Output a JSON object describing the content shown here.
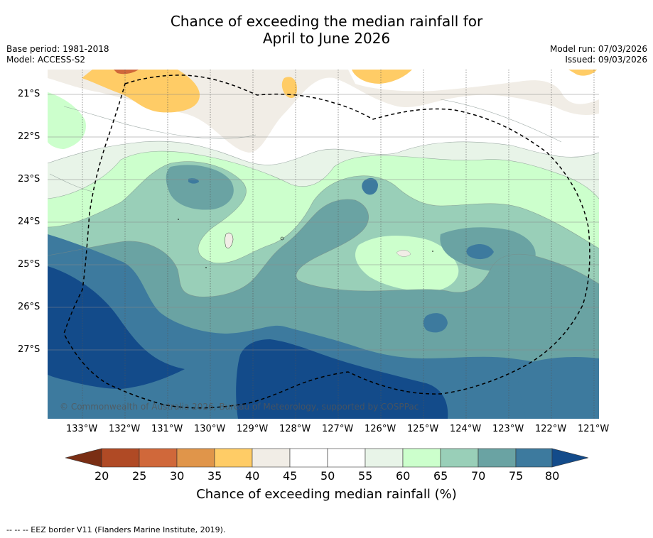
{
  "title": {
    "line1": "Chance of exceeding the median rainfall for",
    "line2": "April to June 2026"
  },
  "meta": {
    "base_period": "Base period: 1981-2018",
    "model": "Model: ACCESS-S2",
    "model_run": "Model run: 07/03/2026",
    "issued": "Issued: 09/03/2026"
  },
  "map": {
    "copyright": "© Commonwealth of Australia 2026, Bureau of Meteorology, supported by COSPPac",
    "lat_labels": [
      "21°S",
      "22°S",
      "23°S",
      "24°S",
      "25°S",
      "26°S",
      "27°S"
    ],
    "lon_labels": [
      "133°W",
      "132°W",
      "131°W",
      "130°W",
      "129°W",
      "128°W",
      "127°W",
      "126°W",
      "125°W",
      "124°W",
      "123°W",
      "122°W",
      "121°W"
    ]
  },
  "colorbar": {
    "ticks": [
      "20",
      "25",
      "30",
      "35",
      "40",
      "45",
      "50",
      "55",
      "60",
      "65",
      "70",
      "75",
      "80"
    ],
    "colors": [
      "#7a2e14",
      "#b04a25",
      "#d0683a",
      "#e0954a",
      "#ffcc66",
      "#f1ede6",
      "#ffffff",
      "#ffffff",
      "#e8f4e8",
      "#ccffcc",
      "#99cfb8",
      "#6aa3a3",
      "#3d7a9e",
      "#134b8a"
    ],
    "label": "Chance of exceeding median rainfall (%)"
  },
  "footer": "--  --  -- EEZ border V11 (Flanders Marine Institute, 2019)."
}
